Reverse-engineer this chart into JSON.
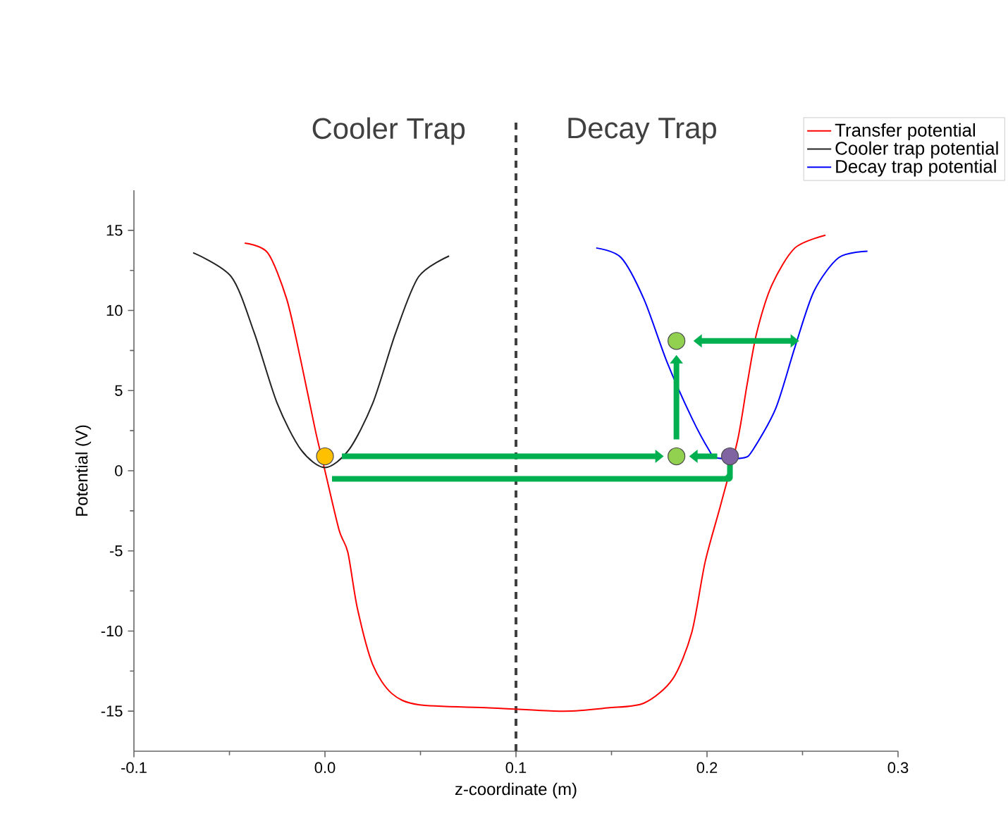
{
  "chart_data": {
    "type": "line",
    "xlabel": "z-coordinate (m)",
    "ylabel": "Potential (V)",
    "annotations": [
      "Cooler Trap",
      "Decay Trap"
    ],
    "xlim": [
      -0.1,
      0.3
    ],
    "ylim": [
      -17.5,
      17.5
    ],
    "xticks": [
      -0.1,
      {
        "value": 0,
        "label": "0.0"
      },
      0.1,
      0.2,
      0.3
    ],
    "yticks": [
      -15,
      -10,
      -5,
      0,
      5,
      10,
      15
    ],
    "grid": false,
    "legend": "top right",
    "line_style": "solid",
    "ref_lines": [
      {
        "axis": "x",
        "value": 0.1,
        "color": "#404040",
        "line_style": "dashed"
      }
    ],
    "series": [
      {
        "name": "Transfer potential",
        "color": "#ff0000",
        "x": [
          -0.042,
          -0.03,
          -0.02,
          -0.0125,
          -0.005,
          0,
          0.0074,
          0.012,
          0.017,
          0.025,
          0.035,
          0.049,
          0.086,
          0.125,
          0.148,
          0.167,
          0.182,
          0.192,
          0.199,
          0.207,
          0.216,
          0.221,
          0.226,
          0.234,
          0.246,
          0.262
        ],
        "values": [
          14.2,
          13.6,
          10.7,
          6.8,
          2.5,
          0,
          -3.7,
          -5.1,
          -8.6,
          -12.1,
          -13.9,
          -14.6,
          -14.8,
          -15.0,
          -14.8,
          -14.5,
          -13.0,
          -10.1,
          -5.7,
          -2.2,
          1.9,
          5.4,
          8.6,
          11.6,
          13.9,
          14.7
        ]
      },
      {
        "name": "Cooler trap potential",
        "color": "#222222",
        "x": [
          -0.069,
          -0.049,
          -0.037,
          -0.025,
          -0.0125,
          0,
          0.0125,
          0.025,
          0.037,
          0.049,
          0.065
        ],
        "values": [
          13.6,
          12.1,
          8.6,
          4.2,
          1.3,
          0.2,
          1.3,
          4.2,
          8.6,
          12.1,
          13.4
        ]
      },
      {
        "name": "Decay trap potential",
        "color": "#0000ff",
        "x": [
          0.142,
          0.155,
          0.167,
          0.179,
          0.192,
          0.201,
          0.205,
          0.219,
          0.224,
          0.236,
          0.246,
          0.256,
          0.269,
          0.284
        ],
        "values": [
          13.9,
          13.3,
          10.7,
          6.8,
          3.3,
          1.3,
          0.8,
          0.8,
          1.3,
          3.9,
          7.7,
          11.2,
          13.3,
          13.7
        ]
      },
      {
        "type": "scatter",
        "x": [
          0,
          0.184,
          0.184,
          0.212
        ],
        "values": [
          0.9,
          0.9,
          8.1,
          0.9
        ],
        "colors": [
          "#ffc000",
          "#92d050",
          "#92d050",
          "#8064a2"
        ]
      }
    ]
  }
}
